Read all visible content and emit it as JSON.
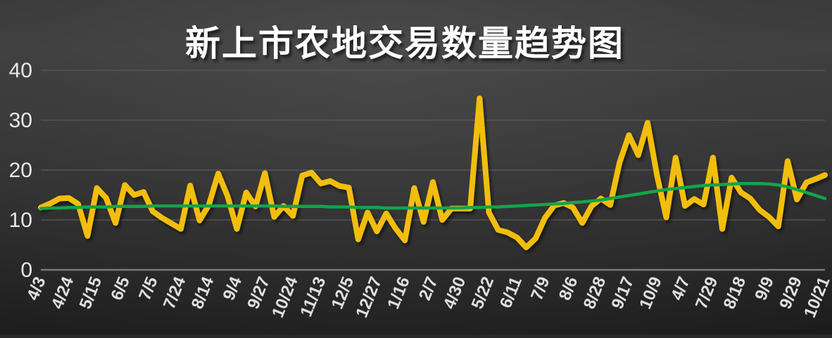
{
  "chart_data": {
    "type": "line",
    "title": "新上市农地交易数量趋势图",
    "xlabel": "",
    "ylabel": "",
    "ylim": [
      0,
      40
    ],
    "yticks": [
      0,
      10,
      20,
      30,
      40
    ],
    "grid": true,
    "legend_position": "none",
    "x_tick_labels": [
      "4/3",
      "4/24",
      "5/15",
      "6/5",
      "7/5",
      "7/24",
      "8/14",
      "9/4",
      "9/27",
      "10/24",
      "11/13",
      "12/5",
      "12/27",
      "1/16",
      "2/7",
      "4/30",
      "5/22",
      "6/11",
      "7/9",
      "8/6",
      "8/28",
      "9/17",
      "10/9",
      "4/7",
      "7/29",
      "8/18",
      "9/9",
      "9/29",
      "10/21"
    ],
    "points_per_labeled_tick": 3,
    "series": [
      {
        "role": "data-line",
        "color": "#F2BE0E",
        "values": [
          12.5,
          13.3,
          14.3,
          14.4,
          13.2,
          6.8,
          16.4,
          14.4,
          9.4,
          17,
          15,
          15.6,
          11.7,
          10.4,
          9.3,
          8.2,
          16.9,
          9.9,
          13,
          19.3,
          14.8,
          8.2,
          15.5,
          12.7,
          19.4,
          10.6,
          12.8,
          10.8,
          18.9,
          19.5,
          17.3,
          17.8,
          16.8,
          16.5,
          6.1,
          11.5,
          7.7,
          11.3,
          8.3,
          5.9,
          16.4,
          9.6,
          17.6,
          10,
          12.3,
          12.3,
          12.3,
          34.4,
          11.5,
          8,
          7.5,
          6.5,
          4.5,
          6.3,
          10.4,
          12.9,
          13.4,
          12.5,
          9.4,
          12.8,
          14.3,
          13,
          21.5,
          27,
          23,
          29.5,
          19,
          10.5,
          22.5,
          12.8,
          14.2,
          13.1,
          22.5,
          8.2,
          18.5,
          15.5,
          14.3,
          12,
          10.6,
          8.7,
          21.8,
          14.1,
          17.5,
          18.2,
          19
        ]
      },
      {
        "role": "trend-line",
        "color": "#14A44C",
        "values": [
          12.3,
          12.4,
          12.4,
          12.5,
          12.5,
          12.6,
          12.6,
          12.6,
          12.7,
          12.7,
          12.7,
          12.7,
          12.8,
          12.8,
          12.8,
          12.8,
          12.8,
          12.8,
          12.8,
          12.8,
          12.8,
          12.8,
          12.8,
          12.8,
          12.8,
          12.8,
          12.7,
          12.7,
          12.7,
          12.7,
          12.7,
          12.6,
          12.6,
          12.6,
          12.5,
          12.5,
          12.5,
          12.4,
          12.4,
          12.4,
          12.4,
          12.4,
          12.4,
          12.4,
          12.4,
          12.4,
          12.5,
          12.5,
          12.6,
          12.6,
          12.7,
          12.8,
          12.9,
          13.0,
          13.1,
          13.2,
          13.3,
          13.5,
          13.6,
          13.8,
          14.0,
          14.3,
          14.6,
          14.9,
          15.2,
          15.5,
          15.8,
          16.1,
          16.3,
          16.5,
          16.7,
          16.9,
          17.0,
          17.1,
          17.2,
          17.3,
          17.3,
          17.3,
          17.2,
          17.0,
          16.6,
          16.1,
          15.5,
          14.9,
          14.3
        ]
      }
    ]
  },
  "colors": {
    "background_top": "#414141",
    "background_bottom": "#1b1b1b",
    "gridline": "#5a5a5a",
    "axis_line": "#7d7d7d",
    "tick_text": "#e8e8e8",
    "title_text": "#ffffff"
  }
}
